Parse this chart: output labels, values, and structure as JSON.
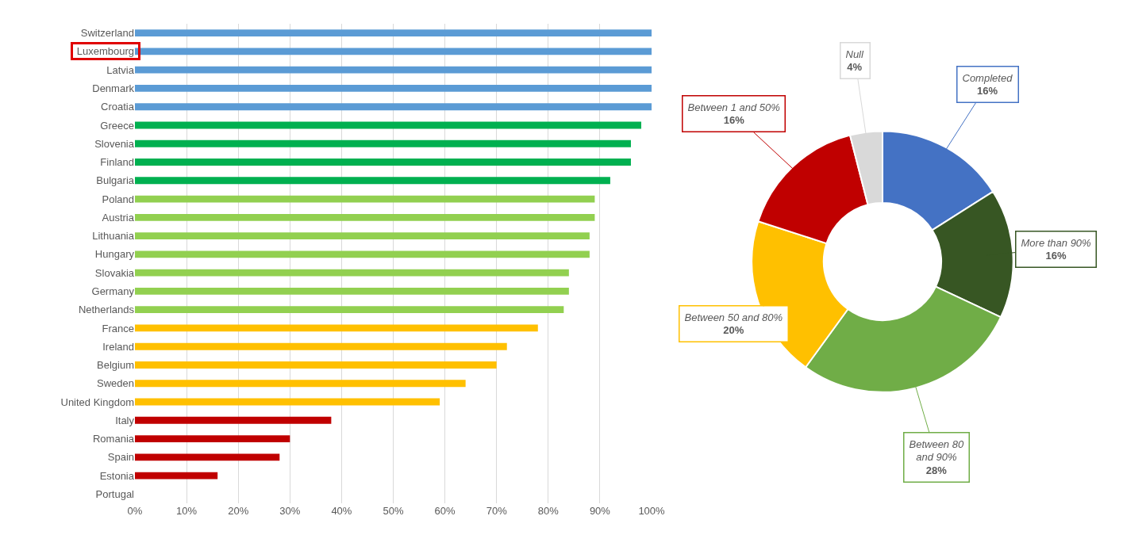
{
  "chart_data": [
    {
      "type": "bar",
      "orientation": "horizontal",
      "categories": [
        "Switzerland",
        "Luxembourg",
        "Latvia",
        "Denmark",
        "Croatia",
        "Greece",
        "Slovenia",
        "Finland",
        "Bulgaria",
        "Poland",
        "Austria",
        "Lithuania",
        "Hungary",
        "Slovakia",
        "Germany",
        "Netherlands",
        "France",
        "Ireland",
        "Belgium",
        "Sweden",
        "United Kingdom",
        "Italy",
        "Romania",
        "Spain",
        "Estonia",
        "Portugal"
      ],
      "values": [
        100,
        100,
        100,
        100,
        100,
        98,
        96,
        96,
        92,
        89,
        89,
        88,
        88,
        84,
        84,
        83,
        78,
        72,
        70,
        64,
        59,
        38,
        30,
        28,
        16,
        0
      ],
      "colors": [
        "#5b9bd5",
        "#5b9bd5",
        "#5b9bd5",
        "#5b9bd5",
        "#5b9bd5",
        "#00b050",
        "#00b050",
        "#00b050",
        "#00b050",
        "#92d050",
        "#92d050",
        "#92d050",
        "#92d050",
        "#92d050",
        "#92d050",
        "#92d050",
        "#ffc000",
        "#ffc000",
        "#ffc000",
        "#ffc000",
        "#ffc000",
        "#c00000",
        "#c00000",
        "#c00000",
        "#c00000",
        "#c00000"
      ],
      "xlim": [
        0,
        100
      ],
      "xticks": [
        {
          "value": 0,
          "label": "0%"
        },
        {
          "value": 10,
          "label": "10%"
        },
        {
          "value": 20,
          "label": "20%"
        },
        {
          "value": 30,
          "label": "30%"
        },
        {
          "value": 40,
          "label": "40%"
        },
        {
          "value": 50,
          "label": "50%"
        },
        {
          "value": 60,
          "label": "60%"
        },
        {
          "value": 70,
          "label": "70%"
        },
        {
          "value": 80,
          "label": "80%"
        },
        {
          "value": 90,
          "label": "90%"
        },
        {
          "value": 100,
          "label": "100%"
        }
      ],
      "grid": "x"
    },
    {
      "type": "donut",
      "categories": [
        "Completed",
        "More than 90%",
        "Between 80\nand 90%",
        "Between 50 and 80%",
        "Between 1 and 50%",
        "Null"
      ],
      "values": [
        16,
        16,
        28,
        20,
        16,
        4
      ],
      "value_labels": [
        "16%",
        "16%",
        "28%",
        "20%",
        "16%",
        "4%"
      ],
      "colors": [
        "#4472c4",
        "#375623",
        "#70ad47",
        "#ffc000",
        "#c00000",
        "#d9d9d9"
      ]
    }
  ]
}
